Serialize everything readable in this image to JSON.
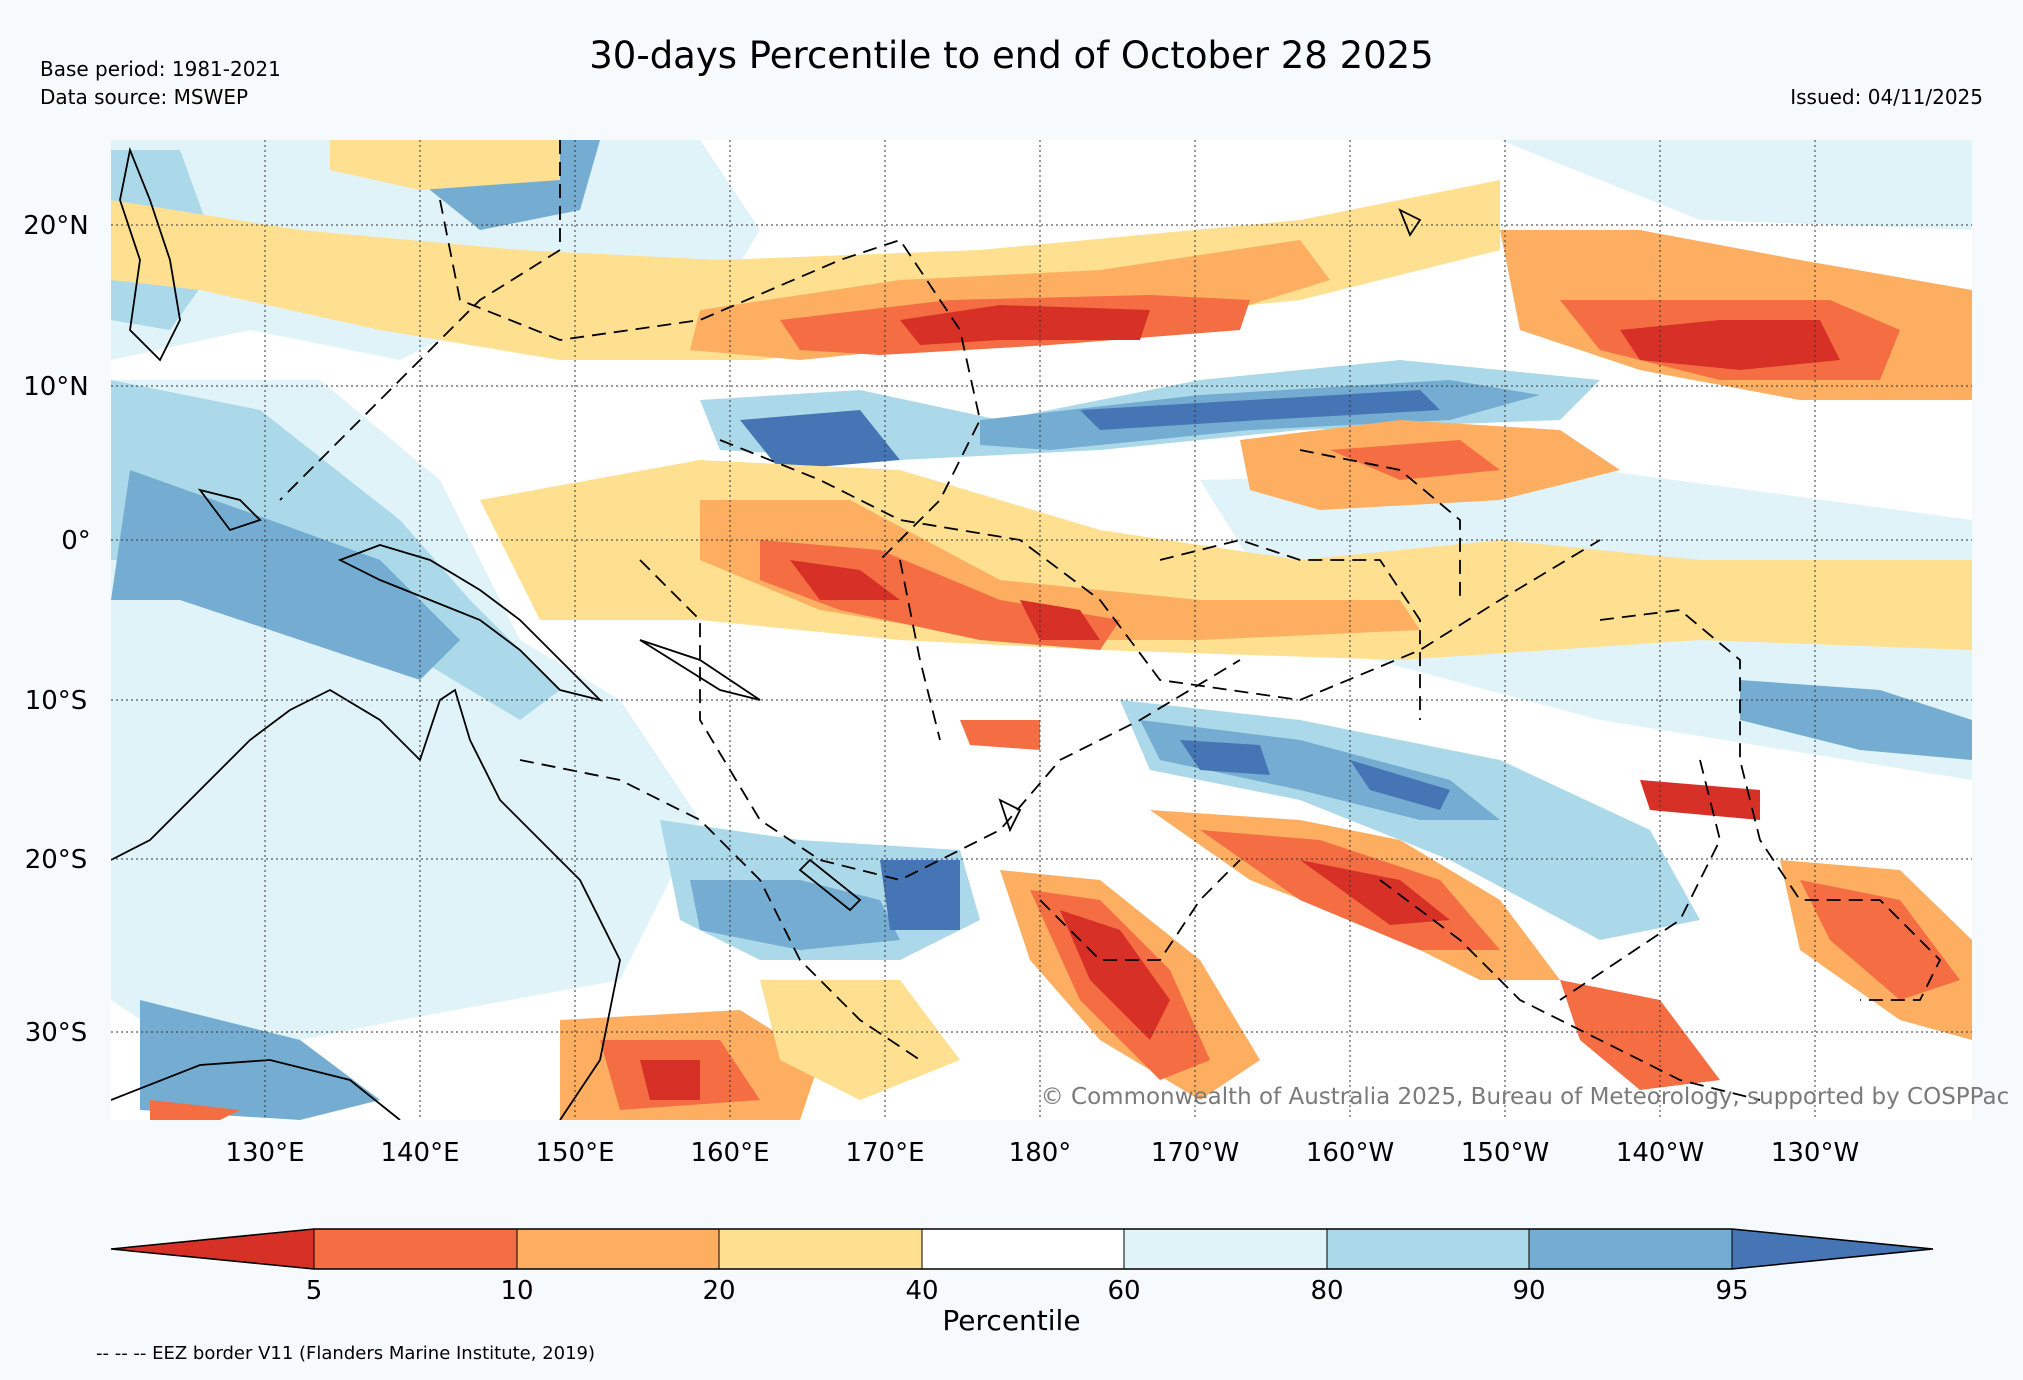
{
  "header": {
    "title": "30-days Percentile to end of October 28 2025",
    "base_period": "Base period: 1981-2021",
    "data_source": "Data source: MSWEP",
    "issued": "Issued: 04/11/2025"
  },
  "map": {
    "region": "Western and central tropical Pacific",
    "lon_range": [
      120,
      240
    ],
    "lat_range": [
      -36,
      25
    ],
    "lat_ticks": [
      "20°N",
      "10°N",
      "0°",
      "10°S",
      "20°S",
      "30°S"
    ],
    "lon_ticks": [
      "130°E",
      "140°E",
      "150°E",
      "160°E",
      "170°E",
      "180°",
      "170°W",
      "160°W",
      "150°W",
      "140°W",
      "130°W"
    ],
    "copyright": "© Commonwealth of Australia 2025, Bureau of Meteorology, supported by COSPPac"
  },
  "colorbar": {
    "label": "Percentile",
    "ticks": [
      "5",
      "10",
      "20",
      "40",
      "60",
      "80",
      "90",
      "95"
    ],
    "colors": [
      "#d73027",
      "#f46d43",
      "#fdae61",
      "#fee090",
      "#ffffff",
      "#e0f3f8",
      "#abd9e9",
      "#74add1",
      "#4575b4"
    ]
  },
  "footer": {
    "eez_note": "-- -- -- EEZ border V11 (Flanders Marine Institute, 2019)"
  }
}
